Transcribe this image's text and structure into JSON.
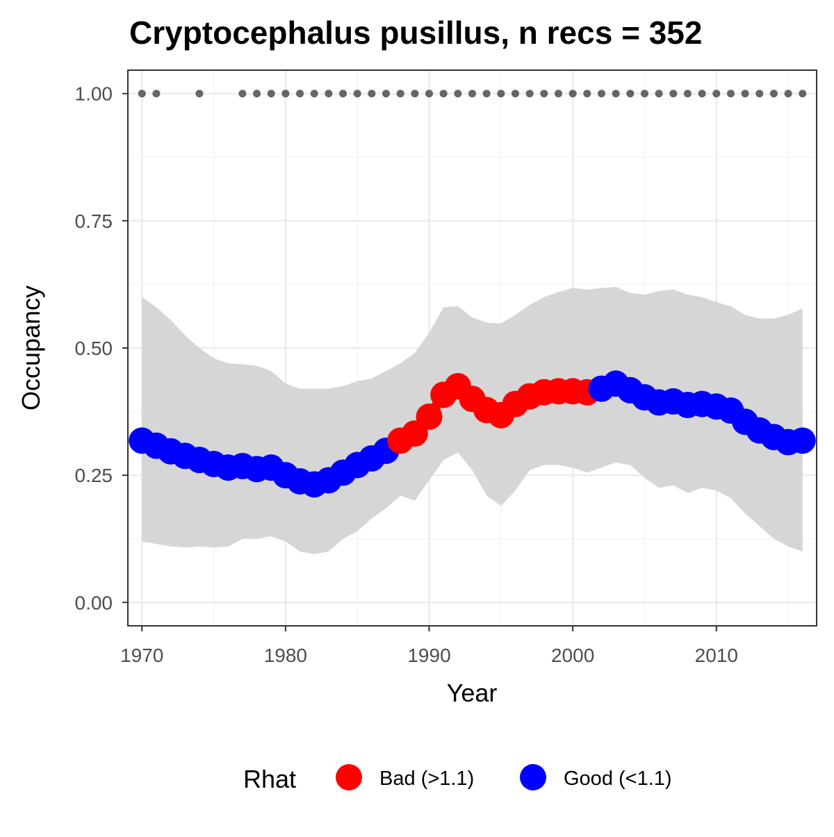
{
  "chart_data": {
    "type": "line",
    "title": "Cryptocephalus pusillus, n recs = 352",
    "xlabel": "Year",
    "ylabel": "Occupancy",
    "xlim": [
      1967.8,
      1968.2
    ],
    "ylim": [
      -0.046,
      1.046
    ],
    "x_ticks": [
      1970,
      1980,
      1990,
      2000,
      2010
    ],
    "x_tick_labels": [
      "1970",
      "1980",
      "1990",
      "2000",
      "2010"
    ],
    "y_ticks": [
      0,
      0.25,
      0.5,
      0.75,
      1.0
    ],
    "y_tick_labels": [
      "0.00",
      "0.25",
      "0.50",
      "0.75",
      "1.00"
    ],
    "grid": true,
    "legend_position": "bottom",
    "legend": {
      "title": "Rhat",
      "entries": [
        {
          "label": "Bad (>1.1)",
          "color": "#ff0000"
        },
        {
          "label": "Good (<1.1)",
          "color": "#0000ff"
        }
      ]
    },
    "colors": {
      "bad": "#ff0000",
      "good": "#0000ff",
      "ribbon": "#d6d6d6",
      "record_dots": "#666666"
    },
    "series": [
      {
        "type": "ribbon",
        "x": [
          1970,
          1971,
          1972,
          1973,
          1974,
          1975,
          1976,
          1977,
          1978,
          1979,
          1980,
          1981,
          1982,
          1983,
          1984,
          1985,
          1986,
          1987,
          1988,
          1989,
          1990,
          1991,
          1992,
          1993,
          1994,
          1995,
          1996,
          1997,
          1998,
          1999,
          2000,
          2001,
          2002,
          2003,
          2004,
          2005,
          2006,
          2007,
          2008,
          2009,
          2010,
          2011,
          2012,
          2013,
          2014,
          2015,
          2016
        ],
        "lower": [
          0.12,
          0.115,
          0.11,
          0.108,
          0.11,
          0.108,
          0.11,
          0.125,
          0.125,
          0.13,
          0.12,
          0.1,
          0.095,
          0.1,
          0.125,
          0.14,
          0.165,
          0.185,
          0.21,
          0.2,
          0.24,
          0.28,
          0.295,
          0.26,
          0.21,
          0.19,
          0.22,
          0.26,
          0.27,
          0.27,
          0.265,
          0.255,
          0.265,
          0.275,
          0.27,
          0.245,
          0.225,
          0.23,
          0.215,
          0.225,
          0.22,
          0.205,
          0.175,
          0.15,
          0.125,
          0.11,
          0.1
        ],
        "upper": [
          0.6,
          0.58,
          0.555,
          0.525,
          0.5,
          0.48,
          0.47,
          0.468,
          0.465,
          0.455,
          0.43,
          0.42,
          0.42,
          0.42,
          0.425,
          0.435,
          0.44,
          0.455,
          0.47,
          0.49,
          0.53,
          0.58,
          0.582,
          0.56,
          0.55,
          0.548,
          0.565,
          0.585,
          0.6,
          0.61,
          0.618,
          0.615,
          0.618,
          0.62,
          0.608,
          0.605,
          0.612,
          0.615,
          0.605,
          0.6,
          0.59,
          0.582,
          0.565,
          0.558,
          0.558,
          0.565,
          0.578
        ]
      },
      {
        "type": "line",
        "name": "mean occupancy",
        "x": [
          1970,
          1971,
          1972,
          1973,
          1974,
          1975,
          1976,
          1977,
          1978,
          1979,
          1980,
          1981,
          1982,
          1983,
          1984,
          1985,
          1986,
          1987,
          1988,
          1989,
          1990,
          1991,
          1992,
          1993,
          1994,
          1995,
          1996,
          1997,
          1998,
          1999,
          2000,
          2001,
          2002,
          2003,
          2004,
          2005,
          2006,
          2007,
          2008,
          2009,
          2010,
          2011,
          2012,
          2013,
          2014,
          2015,
          2016
        ],
        "y": [
          0.318,
          0.308,
          0.297,
          0.288,
          0.28,
          0.272,
          0.265,
          0.268,
          0.262,
          0.265,
          0.25,
          0.238,
          0.232,
          0.24,
          0.255,
          0.27,
          0.283,
          0.298,
          0.318,
          0.332,
          0.365,
          0.408,
          0.425,
          0.4,
          0.378,
          0.368,
          0.39,
          0.405,
          0.413,
          0.415,
          0.415,
          0.413,
          0.42,
          0.43,
          0.417,
          0.403,
          0.393,
          0.395,
          0.388,
          0.39,
          0.385,
          0.377,
          0.355,
          0.338,
          0.325,
          0.315,
          0.318
        ],
        "rhat": [
          "Good",
          "Good",
          "Good",
          "Good",
          "Good",
          "Good",
          "Good",
          "Good",
          "Good",
          "Good",
          "Good",
          "Good",
          "Good",
          "Good",
          "Good",
          "Good",
          "Good",
          "Good",
          "Bad",
          "Bad",
          "Bad",
          "Bad",
          "Bad",
          "Bad",
          "Bad",
          "Bad",
          "Bad",
          "Bad",
          "Bad",
          "Bad",
          "Bad",
          "Bad",
          "Good",
          "Good",
          "Good",
          "Good",
          "Good",
          "Good",
          "Good",
          "Good",
          "Good",
          "Good",
          "Good",
          "Good",
          "Good",
          "Good",
          "Good"
        ]
      },
      {
        "type": "scatter",
        "name": "record years",
        "x": [
          1970,
          1971,
          1974,
          1977,
          1978,
          1979,
          1980,
          1981,
          1982,
          1983,
          1984,
          1985,
          1986,
          1987,
          1988,
          1989,
          1990,
          1991,
          1992,
          1993,
          1994,
          1995,
          1996,
          1997,
          1998,
          1999,
          2000,
          2001,
          2002,
          2003,
          2004,
          2005,
          2006,
          2007,
          2008,
          2009,
          2010,
          2011,
          2012,
          2013,
          2014,
          2015,
          2016
        ],
        "y": 1.0
      }
    ]
  }
}
